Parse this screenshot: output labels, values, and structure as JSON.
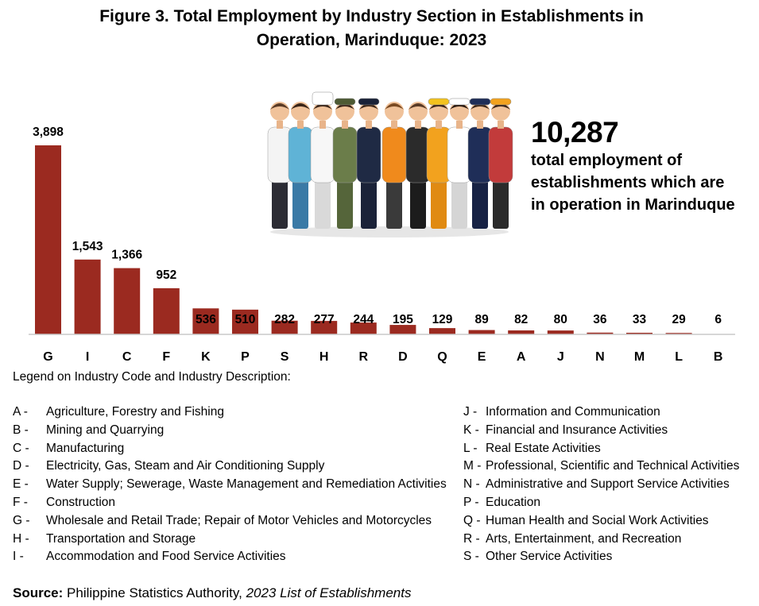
{
  "title_line1": "Figure 3. Total Employment by Industry Section in Establishments in",
  "title_line2": "Operation, Marinduque: 2023",
  "highlight": {
    "value": "10,287",
    "line1": "total employment of",
    "line2": "establishments which are",
    "line3": "in operation in Marinduque"
  },
  "chart_data": {
    "type": "bar",
    "title": "Figure 3. Total Employment by Industry Section in Establishments in Operation, Marinduque: 2023",
    "categories": [
      "G",
      "I",
      "C",
      "F",
      "K",
      "P",
      "S",
      "H",
      "R",
      "D",
      "Q",
      "E",
      "A",
      "J",
      "N",
      "M",
      "L",
      "B"
    ],
    "values": [
      3898,
      1543,
      1366,
      952,
      536,
      510,
      282,
      277,
      244,
      195,
      129,
      89,
      82,
      80,
      36,
      33,
      29,
      6
    ],
    "value_labels": [
      "3,898",
      "1,543",
      "1,366",
      "952",
      "536",
      "510",
      "282",
      "277",
      "244",
      "195",
      "129",
      "89",
      "82",
      "80",
      "36",
      "33",
      "29",
      "6"
    ],
    "bar_color": "#9b2a20",
    "ylim": [
      0,
      3898
    ],
    "grid": false,
    "legend": "none"
  },
  "legend_title": "Legend on Industry Code and Industry Description:",
  "legend_left": [
    {
      "code": "A -",
      "desc": "Agriculture, Forestry and Fishing"
    },
    {
      "code": "B -",
      "desc": "Mining and Quarrying"
    },
    {
      "code": "C -",
      "desc": "Manufacturing"
    },
    {
      "code": "D -",
      "desc": "Electricity, Gas, Steam and Air Conditioning Supply"
    },
    {
      "code": "E -",
      "desc": "Water Supply; Sewerage, Waste Management and Remediation Activities"
    },
    {
      "code": "F -",
      "desc": "Construction"
    },
    {
      "code": "G -",
      "desc": "Wholesale and Retail Trade; Repair of Motor Vehicles and Motorcycles"
    },
    {
      "code": "H -",
      "desc": "Transportation and Storage"
    },
    {
      "code": "I -",
      "desc": "Accommodation and Food Service Activities"
    }
  ],
  "legend_right": [
    {
      "code": "J -",
      "desc": "Information and Communication"
    },
    {
      "code": "K -",
      "desc": "Financial and Insurance Activities"
    },
    {
      "code": "L -",
      "desc": "Real Estate Activities"
    },
    {
      "code": "M -",
      "desc": "Professional, Scientific and Technical Activities"
    },
    {
      "code": "N -",
      "desc": "Administrative and Support Service Activities"
    },
    {
      "code": "P -",
      "desc": "Education"
    },
    {
      "code": "Q -",
      "desc": "Human Health and Social Work Activities"
    },
    {
      "code": "R -",
      "desc": "Arts, Entertainment, and Recreation"
    },
    {
      "code": "S -",
      "desc": "Other Service Activities"
    }
  ],
  "source": {
    "label": "Source:",
    "org": "Philippine Statistics Authority,",
    "doc": "2023 List of Establishments"
  },
  "illustration": {
    "icon": "workers-group-illustration"
  }
}
